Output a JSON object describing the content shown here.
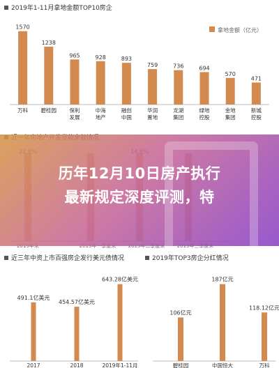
{
  "colors": {
    "bar": "#d38a4e",
    "axis": "#bbbbbb",
    "text": "#333333"
  },
  "sections": {
    "top10_title": "2019年1-11月拿地金额TOP10房企",
    "loan_title": "近一年房地产开发贷款余额情况",
    "bond_title": "近三年中资上市百强房企发行美元债情况",
    "top3_title": "2019年TOP3房企分红情况"
  },
  "overlay": {
    "headline_line1": "历年12月10日房产执行",
    "headline_line2": "最新规定深度评测，特"
  },
  "chart_data": [
    {
      "type": "bar",
      "title": "2019年1-11月拿地金额TOP10房企",
      "legend": "拿地金额（亿元）",
      "legend_position": "top-right",
      "categories": [
        "万科",
        "碧桂园",
        "保利发展",
        "中海地产",
        "融创中国",
        "华润置地",
        "龙湖集团",
        "绿地控股",
        "金地集团",
        "新城控股"
      ],
      "category_lines": [
        [
          "万科"
        ],
        [
          "碧桂园"
        ],
        [
          "保利",
          "发展"
        ],
        [
          "中海",
          "地产"
        ],
        [
          "融创",
          "中国"
        ],
        [
          "华润",
          "置地"
        ],
        [
          "龙湖",
          "集团"
        ],
        [
          "绿地",
          "控股"
        ],
        [
          "金地",
          "集团"
        ],
        [
          "新城",
          "控股"
        ]
      ],
      "values": [
        1570,
        1238,
        965,
        928,
        893,
        759,
        736,
        694,
        570,
        471
      ],
      "ylim": [
        0,
        1700
      ]
    },
    {
      "type": "bar",
      "title": "近一年房地产开发贷款余额情况",
      "categories": [
        "2019年末",
        "2019年一季度末",
        "2019年二季度末",
        "2019年三季度末"
      ],
      "value_labels": [
        "22.6%",
        "",
        "14.6%",
        ""
      ]
    },
    {
      "type": "bar",
      "title": "近三年中资上市百强房企发行美元债情况",
      "categories": [
        "2017",
        "2018",
        "2019年1-11月"
      ],
      "values": [
        491.1,
        454.57,
        643.28
      ],
      "value_labels": [
        "491.1亿美元",
        "454.57亿美元",
        "643.28亿美元"
      ],
      "ylim": [
        0,
        700
      ]
    },
    {
      "type": "bar",
      "title": "2019年TOP3房企分红情况",
      "categories": [
        "碧桂园",
        "中国恒大",
        "万科"
      ],
      "values": [
        106,
        187,
        118.12
      ],
      "value_labels": [
        "106亿元",
        "187亿元",
        "118.12亿元"
      ],
      "ylim": [
        0,
        200
      ]
    }
  ]
}
